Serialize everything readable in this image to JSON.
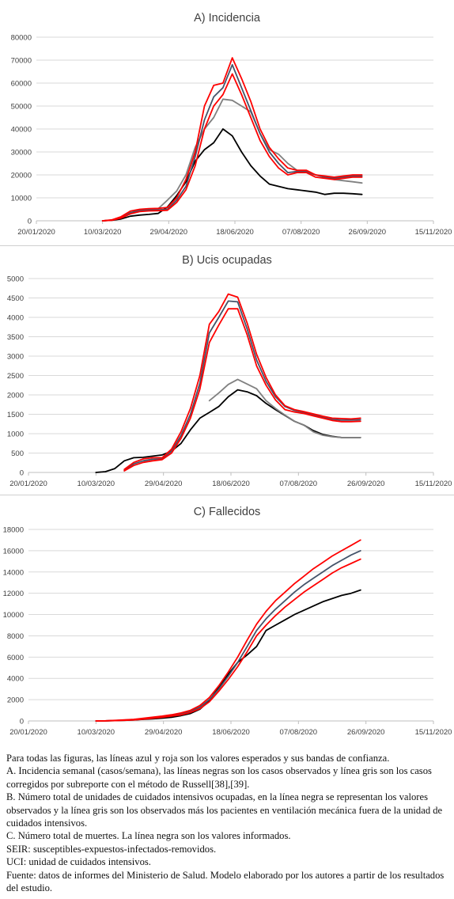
{
  "chart_data": [
    {
      "type": "line",
      "title": "A) Incidencia",
      "xlim": [
        "2020-01-20",
        "2020-11-15"
      ],
      "ylim": [
        0,
        80000
      ],
      "yticks": [
        0,
        10000,
        20000,
        30000,
        40000,
        50000,
        60000,
        70000,
        80000
      ],
      "xticks": [
        "20/01/2020",
        "10/03/2020",
        "29/04/2020",
        "18/06/2020",
        "07/08/2020",
        "26/09/2020",
        "15/11/2020"
      ],
      "x": [
        "2020-03-10",
        "2020-03-17",
        "2020-03-24",
        "2020-03-31",
        "2020-04-07",
        "2020-04-14",
        "2020-04-21",
        "2020-04-28",
        "2020-05-05",
        "2020-05-12",
        "2020-05-19",
        "2020-05-26",
        "2020-06-02",
        "2020-06-09",
        "2020-06-16",
        "2020-06-23",
        "2020-06-30",
        "2020-07-07",
        "2020-07-14",
        "2020-07-21",
        "2020-07-28",
        "2020-08-04",
        "2020-08-11",
        "2020-08-18",
        "2020-08-25",
        "2020-09-01",
        "2020-09-08",
        "2020-09-15",
        "2020-09-22"
      ],
      "series": [
        {
          "color": "#000000",
          "values": [
            0,
            200,
            800,
            2000,
            2500,
            2800,
            3200,
            6000,
            11000,
            17000,
            26000,
            31000,
            34000,
            40000,
            37000,
            30000,
            24000,
            19500,
            16000,
            15000,
            14000,
            13500,
            13000,
            12500,
            11500,
            12000,
            12000,
            11800,
            11500
          ]
        },
        {
          "color": "#808080",
          "values": [
            0,
            300,
            1500,
            3500,
            4500,
            5000,
            5200,
            9000,
            13000,
            20000,
            32000,
            40000,
            45000,
            53000,
            52500,
            50000,
            47500,
            38000,
            31000,
            29000,
            25000,
            22000,
            21000,
            20000,
            19000,
            18000,
            17500,
            17000,
            16500
          ]
        },
        {
          "color": "#44546a",
          "values": [
            0,
            300,
            1500,
            3500,
            4500,
            4700,
            4800,
            5000,
            9000,
            15000,
            28000,
            44000,
            54000,
            58000,
            68000,
            58000,
            48000,
            38000,
            30000,
            25000,
            21000,
            21500,
            21500,
            20000,
            19000,
            18500,
            19000,
            19500,
            19500
          ]
        },
        {
          "color": "#ff0000",
          "values": [
            0,
            400,
            1800,
            4200,
            5000,
            5300,
            5400,
            5800,
            10000,
            18000,
            30000,
            50000,
            59000,
            60000,
            71000,
            62000,
            52000,
            40000,
            32000,
            27000,
            23000,
            22000,
            22000,
            20000,
            19500,
            19000,
            19500,
            20000,
            20000
          ]
        },
        {
          "color": "#ff0000",
          "values": [
            0,
            200,
            1200,
            3000,
            4000,
            4300,
            4400,
            4600,
            8000,
            13500,
            24000,
            40000,
            50000,
            55000,
            64000,
            55000,
            45000,
            35000,
            28000,
            23000,
            20000,
            21000,
            21000,
            19000,
            18500,
            18000,
            18500,
            19000,
            19000
          ]
        }
      ]
    },
    {
      "type": "line",
      "title": "B) Ucis ocupadas",
      "xlim": [
        "2020-01-20",
        "2020-11-15"
      ],
      "ylim": [
        0,
        5000
      ],
      "yticks": [
        0,
        500,
        1000,
        1500,
        2000,
        2500,
        3000,
        3500,
        4000,
        4500,
        5000
      ],
      "xticks": [
        "20/01/2020",
        "10/03/2020",
        "29/04/2020",
        "18/06/2020",
        "07/08/2020",
        "26/09/2020",
        "15/11/2020"
      ],
      "series": [
        {
          "color": "#000000",
          "x": [
            "2020-03-10",
            "2020-03-17",
            "2020-03-24",
            "2020-03-31",
            "2020-04-07",
            "2020-04-14",
            "2020-04-21",
            "2020-04-28",
            "2020-05-05",
            "2020-05-12",
            "2020-05-19",
            "2020-05-26",
            "2020-06-02",
            "2020-06-09",
            "2020-06-16",
            "2020-06-23",
            "2020-06-30",
            "2020-07-07",
            "2020-07-14",
            "2020-07-21",
            "2020-07-28",
            "2020-08-04",
            "2020-08-11",
            "2020-08-18",
            "2020-08-25",
            "2020-09-01",
            "2020-09-08",
            "2020-09-15",
            "2020-09-22"
          ],
          "values": [
            0,
            20,
            100,
            300,
            380,
            390,
            420,
            450,
            550,
            750,
            1100,
            1400,
            1550,
            1700,
            1950,
            2130,
            2080,
            1980,
            1780,
            1620,
            1470,
            1320,
            1220,
            1080,
            980,
            930,
            900,
            900,
            900
          ]
        },
        {
          "color": "#808080",
          "x": [
            "2020-06-02",
            "2020-06-09",
            "2020-06-16",
            "2020-06-23",
            "2020-06-30",
            "2020-07-07",
            "2020-07-14",
            "2020-07-21",
            "2020-07-28",
            "2020-08-04",
            "2020-08-11",
            "2020-08-18",
            "2020-08-25",
            "2020-09-01",
            "2020-09-08",
            "2020-09-15",
            "2020-09-22"
          ],
          "values": [
            1850,
            2050,
            2270,
            2400,
            2280,
            2160,
            1850,
            1650,
            1480,
            1320,
            1220,
            1050,
            960,
            920,
            900,
            900,
            900
          ]
        },
        {
          "color": "#44546a",
          "x": [
            "2020-03-31",
            "2020-04-07",
            "2020-04-14",
            "2020-04-21",
            "2020-04-28",
            "2020-05-05",
            "2020-05-12",
            "2020-05-19",
            "2020-05-26",
            "2020-06-02",
            "2020-06-09",
            "2020-06-16",
            "2020-06-23",
            "2020-06-30",
            "2020-07-07",
            "2020-07-14",
            "2020-07-21",
            "2020-07-28",
            "2020-08-04",
            "2020-08-11",
            "2020-08-18",
            "2020-08-25",
            "2020-09-01",
            "2020-09-08",
            "2020-09-15",
            "2020-09-22"
          ],
          "values": [
            60,
            220,
            300,
            340,
            350,
            550,
            950,
            1500,
            2300,
            3600,
            4000,
            4420,
            4400,
            3700,
            2900,
            2350,
            1950,
            1700,
            1600,
            1550,
            1480,
            1420,
            1370,
            1350,
            1350,
            1360
          ]
        },
        {
          "color": "#ff0000",
          "x": [
            "2020-03-31",
            "2020-04-07",
            "2020-04-14",
            "2020-04-21",
            "2020-04-28",
            "2020-05-05",
            "2020-05-12",
            "2020-05-19",
            "2020-05-26",
            "2020-06-02",
            "2020-06-09",
            "2020-06-16",
            "2020-06-23",
            "2020-06-30",
            "2020-07-07",
            "2020-07-14",
            "2020-07-21",
            "2020-07-28",
            "2020-08-04",
            "2020-08-11",
            "2020-08-18",
            "2020-08-25",
            "2020-09-01",
            "2020-09-08",
            "2020-09-15",
            "2020-09-22"
          ],
          "values": [
            80,
            260,
            350,
            380,
            380,
            600,
            1050,
            1650,
            2500,
            3820,
            4150,
            4600,
            4520,
            3850,
            3050,
            2450,
            2000,
            1720,
            1620,
            1570,
            1510,
            1450,
            1400,
            1390,
            1380,
            1400
          ]
        },
        {
          "color": "#ff0000",
          "x": [
            "2020-03-31",
            "2020-04-07",
            "2020-04-14",
            "2020-04-21",
            "2020-04-28",
            "2020-05-05",
            "2020-05-12",
            "2020-05-19",
            "2020-05-26",
            "2020-06-02",
            "2020-06-09",
            "2020-06-16",
            "2020-06-23",
            "2020-06-30",
            "2020-07-07",
            "2020-07-14",
            "2020-07-21",
            "2020-07-28",
            "2020-08-04",
            "2020-08-11",
            "2020-08-18",
            "2020-08-25",
            "2020-09-01",
            "2020-09-08",
            "2020-09-15",
            "2020-09-22"
          ],
          "values": [
            40,
            180,
            260,
            300,
            330,
            500,
            880,
            1400,
            2150,
            3350,
            3800,
            4220,
            4220,
            3550,
            2750,
            2250,
            1870,
            1620,
            1560,
            1520,
            1460,
            1400,
            1340,
            1310,
            1310,
            1320
          ]
        }
      ]
    },
    {
      "type": "line",
      "title": "C) Fallecidos",
      "xlim": [
        "2020-01-20",
        "2020-11-15"
      ],
      "ylim": [
        0,
        18000
      ],
      "yticks": [
        0,
        2000,
        4000,
        6000,
        8000,
        10000,
        12000,
        14000,
        16000,
        18000
      ],
      "xticks": [
        "20/01/2020",
        "10/03/2020",
        "29/04/2020",
        "18/06/2020",
        "07/08/2020",
        "26/09/2020",
        "15/11/2020"
      ],
      "x": [
        "2020-03-10",
        "2020-03-17",
        "2020-03-24",
        "2020-03-31",
        "2020-04-07",
        "2020-04-14",
        "2020-04-21",
        "2020-04-28",
        "2020-05-05",
        "2020-05-12",
        "2020-05-19",
        "2020-05-26",
        "2020-06-02",
        "2020-06-09",
        "2020-06-16",
        "2020-06-23",
        "2020-06-30",
        "2020-07-07",
        "2020-07-14",
        "2020-07-21",
        "2020-07-28",
        "2020-08-04",
        "2020-08-11",
        "2020-08-18",
        "2020-08-25",
        "2020-09-01",
        "2020-09-08",
        "2020-09-15",
        "2020-09-22"
      ],
      "series": [
        {
          "color": "#000000",
          "values": [
            0,
            10,
            30,
            60,
            100,
            150,
            200,
            260,
            350,
            500,
            700,
            1100,
            1900,
            3200,
            4400,
            5500,
            6200,
            7000,
            8500,
            9000,
            9500,
            10000,
            10400,
            10800,
            11200,
            11500,
            11800,
            12000,
            12300
          ]
        },
        {
          "color": "#44546a",
          "values": [
            0,
            10,
            40,
            80,
            130,
            200,
            300,
            400,
            500,
            650,
            900,
            1300,
            2000,
            3000,
            4200,
            5500,
            7000,
            8500,
            9600,
            10500,
            11300,
            12100,
            12800,
            13400,
            14000,
            14600,
            15100,
            15600,
            16000
          ]
        },
        {
          "color": "#ff0000",
          "values": [
            0,
            15,
            50,
            100,
            150,
            250,
            350,
            450,
            580,
            750,
            1000,
            1450,
            2200,
            3300,
            4600,
            6000,
            7600,
            9100,
            10300,
            11300,
            12100,
            12900,
            13600,
            14300,
            14900,
            15500,
            16000,
            16500,
            17000
          ]
        },
        {
          "color": "#ff0000",
          "values": [
            0,
            5,
            30,
            60,
            100,
            170,
            250,
            350,
            450,
            570,
            800,
            1150,
            1800,
            2800,
            3900,
            5100,
            6500,
            8000,
            9000,
            9900,
            10700,
            11400,
            12100,
            12700,
            13300,
            13900,
            14400,
            14800,
            15200
          ]
        }
      ]
    }
  ],
  "caption": {
    "line1": "Para todas las figuras, las líneas azul y roja son los valores esperados y sus bandas de confianza.",
    "line2": "A. Incidencia semanal (casos/semana), las líneas negras son los casos observados y línea gris son los casos corregidos por subreporte con el método de Russell[38],[39].",
    "line3": "B. Número total de unidades de cuidados intensivos ocupadas, en la línea negra se representan los valores observados y la línea gris son los observados más los pacientes en ventilación mecánica fuera de la unidad de cuidados intensivos.",
    "line4": "C. Número total de muertes. La línea negra son los valores informados.",
    "line5": "SEIR: susceptibles-expuestos-infectados-removidos.",
    "line6": "UCI: unidad de cuidados intensivos.",
    "line7": "Fuente: datos de informes del Ministerio de Salud. Modelo elaborado por los autores a partir de los resultados del estudio."
  }
}
